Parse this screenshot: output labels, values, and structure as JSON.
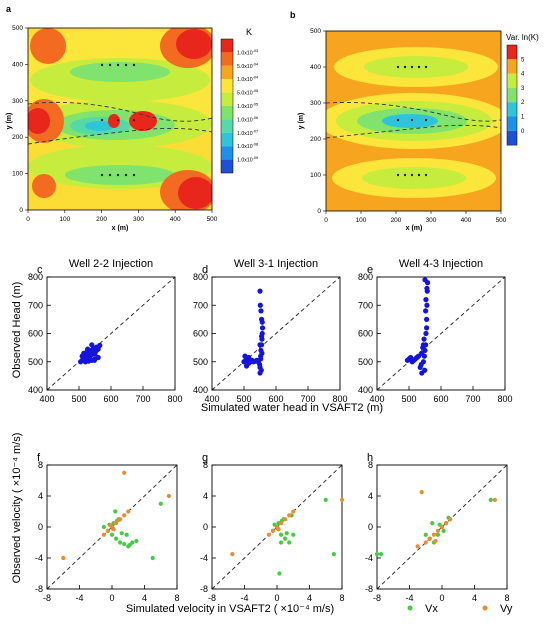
{
  "panels": {
    "a": {
      "letter": "a",
      "colorbar_title": "K",
      "colorbar_labels": [
        "1.0x10^-03",
        "5.0x10^-04",
        "1.0x10^-04",
        "5.0x10^-05",
        "1.0x10^-05",
        "1.0x10^-06",
        "1.0x10^-07",
        "1.0x10^-08",
        "1.0x10^-09"
      ],
      "colorbar_colors": [
        "#e8261c",
        "#f26b21",
        "#f7a51e",
        "#fde63b",
        "#c6ec3d",
        "#7fe36d",
        "#55d9a8",
        "#2ec4dc",
        "#1e90e8",
        "#1e50d6"
      ],
      "xlabel": "x (m)",
      "ylabel": "y (m)",
      "xticks": [
        "0",
        "100",
        "200",
        "300",
        "400",
        "500"
      ],
      "yticks": [
        "0",
        "100",
        "200",
        "300",
        "400",
        "500"
      ]
    },
    "b": {
      "letter": "b",
      "colorbar_title": "Var. ln(K)",
      "colorbar_labels": [
        "5",
        "4",
        "3",
        "2",
        "1",
        "0"
      ],
      "colorbar_colors": [
        "#e8261c",
        "#f7a51e",
        "#c6ec3d",
        "#7fe36d",
        "#2ec4dc",
        "#1e90e8",
        "#1e50d6"
      ],
      "xlabel": "x (m)",
      "ylabel": "y (m)",
      "xticks": [
        "0",
        "100",
        "200",
        "300",
        "400",
        "500"
      ],
      "yticks": [
        "0",
        "100",
        "200",
        "300",
        "400",
        "500"
      ]
    },
    "head": {
      "ylabel": "Observed Head (m)",
      "xlabel": "Simulated water head in VSAFT2 (m)",
      "xticks": [
        "400",
        "500",
        "600",
        "700",
        "800"
      ],
      "yticks": [
        "400",
        "500",
        "600",
        "700",
        "800"
      ]
    },
    "vel": {
      "ylabel": "Observed velocity ( ×10⁻⁴ m/s)",
      "xlabel": "Simulated velocity in VSAFT2 ( ×10⁻⁴ m/s)",
      "xticks": [
        "-8",
        "-4",
        "0",
        "4",
        "8"
      ],
      "yticks": [
        "-8",
        "-4",
        "0",
        "4",
        "8"
      ],
      "legend": [
        {
          "label": "Vx",
          "color": "#44cc44"
        },
        {
          "label": "Vy",
          "color": "#f08a30"
        }
      ]
    }
  },
  "chart_data": [
    {
      "type": "scatter",
      "panel": "c",
      "letter": "c",
      "title": "Well 2-2 Injection",
      "xlim": [
        400,
        800
      ],
      "ylim": [
        400,
        800
      ],
      "point_color": "#1414dc",
      "x": [
        505,
        510,
        515,
        520,
        525,
        530,
        535,
        540,
        545,
        550,
        555,
        560,
        515,
        525,
        535,
        545,
        555,
        520,
        530,
        540,
        550,
        560,
        510,
        530,
        550,
        565,
        540,
        548,
        527,
        518
      ],
      "y": [
        500,
        505,
        508,
        512,
        515,
        518,
        520,
        525,
        530,
        535,
        540,
        545,
        530,
        535,
        540,
        548,
        552,
        500,
        502,
        505,
        510,
        515,
        520,
        525,
        528,
        558,
        560,
        505,
        545,
        525
      ]
    },
    {
      "type": "scatter",
      "panel": "d",
      "letter": "d",
      "title": "Well 3-1 Injection",
      "xlim": [
        400,
        800
      ],
      "ylim": [
        400,
        800
      ],
      "point_color": "#1414dc",
      "x": [
        500,
        505,
        510,
        515,
        520,
        525,
        530,
        535,
        540,
        545,
        550,
        550,
        552,
        553,
        555,
        556,
        557,
        558,
        555,
        553,
        551,
        550,
        554,
        556,
        549,
        552,
        503,
        508,
        515,
        557,
        550,
        555
      ],
      "y": [
        500,
        505,
        510,
        515,
        500,
        505,
        500,
        502,
        505,
        500,
        460,
        480,
        520,
        540,
        560,
        580,
        600,
        620,
        650,
        680,
        700,
        750,
        470,
        530,
        490,
        510,
        520,
        485,
        495,
        640,
        560,
        590
      ]
    },
    {
      "type": "scatter",
      "panel": "e",
      "letter": "e",
      "title": "Well 4-3 Injection",
      "xlim": [
        400,
        800
      ],
      "ylim": [
        400,
        800
      ],
      "point_color": "#1414dc",
      "x": [
        495,
        500,
        505,
        510,
        515,
        520,
        525,
        530,
        535,
        540,
        545,
        548,
        550,
        552,
        553,
        555,
        556,
        557,
        558,
        550,
        545,
        540,
        555,
        552,
        549,
        547,
        553,
        556,
        543,
        538
      ],
      "y": [
        505,
        510,
        515,
        500,
        505,
        510,
        515,
        520,
        480,
        460,
        500,
        520,
        540,
        560,
        600,
        650,
        700,
        750,
        780,
        790,
        560,
        530,
        620,
        680,
        470,
        580,
        720,
        760,
        550,
        490
      ]
    },
    {
      "type": "scatter",
      "panel": "f",
      "letter": "f",
      "xlim": [
        -8,
        8
      ],
      "ylim": [
        -8,
        8
      ],
      "series": [
        {
          "name": "Vx",
          "color": "#44cc44",
          "x": [
            -1,
            -0.5,
            0,
            0.5,
            1,
            1.5,
            2,
            2.5,
            3,
            0.2,
            0.8,
            1.2,
            -0.3,
            0.1,
            0.6,
            1.8,
            2.2,
            5,
            6,
            0.4
          ],
          "y": [
            0,
            -0.5,
            -1,
            -1.5,
            -2,
            -2.2,
            -2.5,
            -2,
            -1.8,
            0.5,
            1,
            -0.8,
            0.3,
            -0.2,
            0.8,
            -1,
            -2.3,
            -4,
            3,
            2
          ]
        },
        {
          "name": "Vy",
          "color": "#f08a30",
          "x": [
            -6,
            -1,
            -0.5,
            0,
            0.5,
            1,
            1.5,
            2,
            0.2,
            -0.2,
            7,
            1.5,
            0.8
          ],
          "y": [
            -4,
            -1,
            -0.5,
            0,
            0.5,
            1,
            1.5,
            2,
            -0.3,
            0.2,
            4,
            7,
            0.9
          ]
        }
      ]
    },
    {
      "type": "scatter",
      "panel": "g",
      "letter": "g",
      "xlim": [
        -8,
        8
      ],
      "ylim": [
        -8,
        8
      ],
      "series": [
        {
          "name": "Vx",
          "color": "#44cc44",
          "x": [
            -0.5,
            0,
            0.5,
            1,
            1.5,
            2,
            0.2,
            0.8,
            1.2,
            -0.3,
            0.1,
            0.6,
            1.8,
            7,
            6,
            0.3,
            0.5
          ],
          "y": [
            -0.5,
            0,
            -1,
            -1.5,
            -2,
            -1,
            0.5,
            1,
            -0.8,
            0.3,
            -0.2,
            0.8,
            1.5,
            -3.5,
            3.5,
            -6,
            -2
          ]
        },
        {
          "name": "Vy",
          "color": "#f08a30",
          "x": [
            -5.5,
            -1,
            -0.5,
            0,
            0.5,
            1,
            1.5,
            2,
            0.2,
            8
          ],
          "y": [
            -3.5,
            -1,
            -0.5,
            0,
            0.5,
            1,
            1.5,
            2,
            -0.3,
            3.5
          ]
        }
      ]
    },
    {
      "type": "scatter",
      "panel": "h",
      "letter": "h",
      "xlim": [
        -8,
        8
      ],
      "ylim": [
        -8,
        8
      ],
      "series": [
        {
          "name": "Vx",
          "color": "#44cc44",
          "x": [
            -8,
            -7.5,
            -2,
            -1.5,
            -1,
            -0.5,
            0,
            0.5,
            1,
            0.2,
            -0.3,
            0.8,
            6,
            -1.2
          ],
          "y": [
            -3.5,
            -3.5,
            -1,
            -1.5,
            -2,
            -1,
            0,
            0.5,
            1,
            -0.5,
            0.3,
            1.2,
            3.5,
            0.5
          ]
        },
        {
          "name": "Vy",
          "color": "#f08a30",
          "x": [
            -3,
            -2,
            -1.5,
            -1,
            -0.5,
            0,
            0.5,
            1,
            6.5,
            -2.5,
            -0.8
          ],
          "y": [
            -2.5,
            -2,
            -1.5,
            -1,
            -0.5,
            0,
            0.5,
            1,
            3.5,
            4.5,
            -1.8
          ]
        }
      ]
    }
  ]
}
